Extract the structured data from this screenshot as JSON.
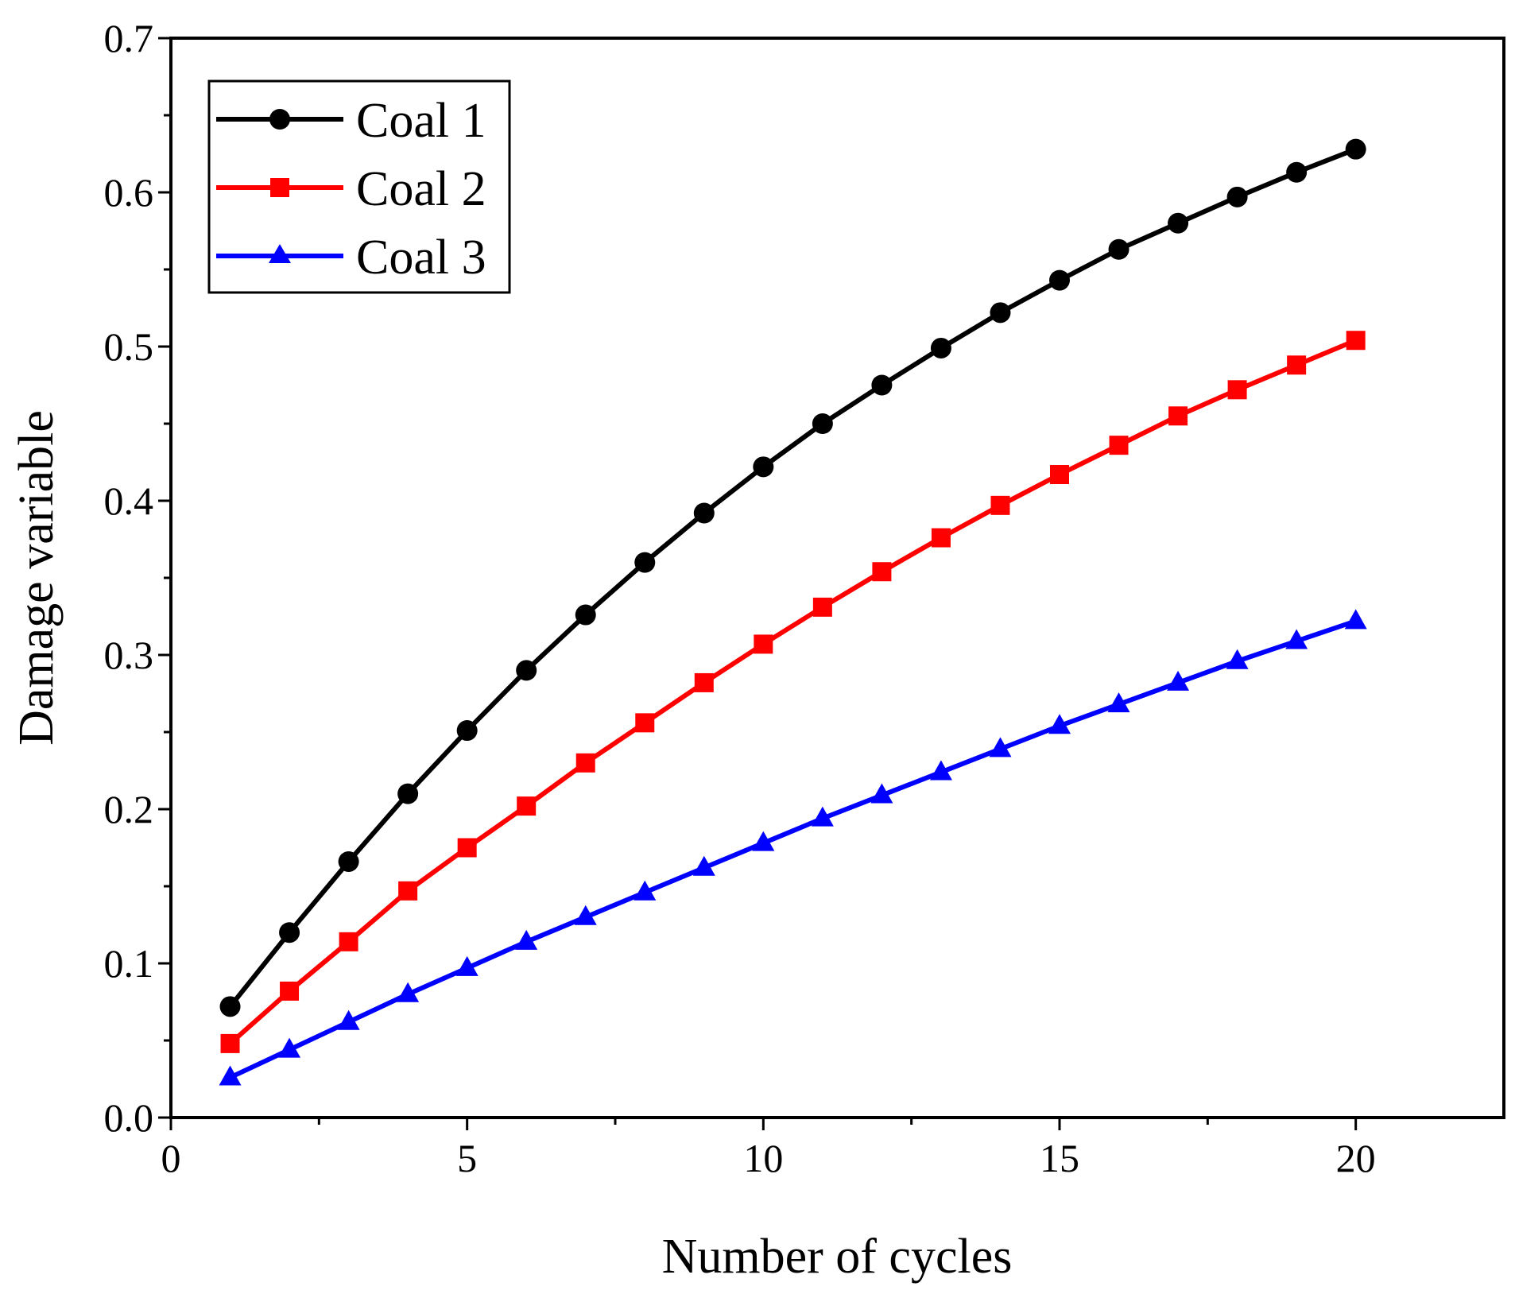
{
  "chart_data": {
    "type": "line",
    "title": "",
    "xlabel": "Number of cycles",
    "ylabel": "Damage variable",
    "xlim": [
      0,
      22.5
    ],
    "ylim": [
      0,
      0.7
    ],
    "x_ticks": [
      0,
      5,
      10,
      15,
      20
    ],
    "x_tick_labels": [
      "0",
      "5",
      "10",
      "15",
      "20"
    ],
    "y_ticks": [
      0,
      0.1,
      0.2,
      0.3,
      0.4,
      0.5,
      0.6,
      0.7
    ],
    "y_tick_labels": [
      "0.0",
      "0.1",
      "0.2",
      "0.3",
      "0.4",
      "0.5",
      "0.6",
      "0.7"
    ],
    "grid": false,
    "legend_position": "top-left",
    "x": [
      1,
      2,
      3,
      4,
      5,
      6,
      7,
      8,
      9,
      10,
      11,
      12,
      13,
      14,
      15,
      16,
      17,
      18,
      19,
      20
    ],
    "series": [
      {
        "name": "Coal 1",
        "color": "#000000",
        "marker": "circle",
        "values": [
          0.072,
          0.12,
          0.166,
          0.21,
          0.251,
          0.29,
          0.326,
          0.36,
          0.392,
          0.422,
          0.45,
          0.475,
          0.499,
          0.522,
          0.543,
          0.563,
          0.58,
          0.597,
          0.613,
          0.628
        ]
      },
      {
        "name": "Coal 2",
        "color": "#ff0000",
        "marker": "square",
        "values": [
          0.048,
          0.082,
          0.114,
          0.147,
          0.175,
          0.202,
          0.23,
          0.256,
          0.282,
          0.307,
          0.331,
          0.354,
          0.376,
          0.397,
          0.417,
          0.436,
          0.455,
          0.472,
          0.488,
          0.504
        ]
      },
      {
        "name": "Coal 3",
        "color": "#0000ff",
        "marker": "triangle",
        "values": [
          0.026,
          0.044,
          0.062,
          0.08,
          0.097,
          0.114,
          0.13,
          0.146,
          0.162,
          0.178,
          0.194,
          0.209,
          0.224,
          0.239,
          0.254,
          0.268,
          0.282,
          0.296,
          0.309,
          0.322
        ]
      }
    ]
  }
}
